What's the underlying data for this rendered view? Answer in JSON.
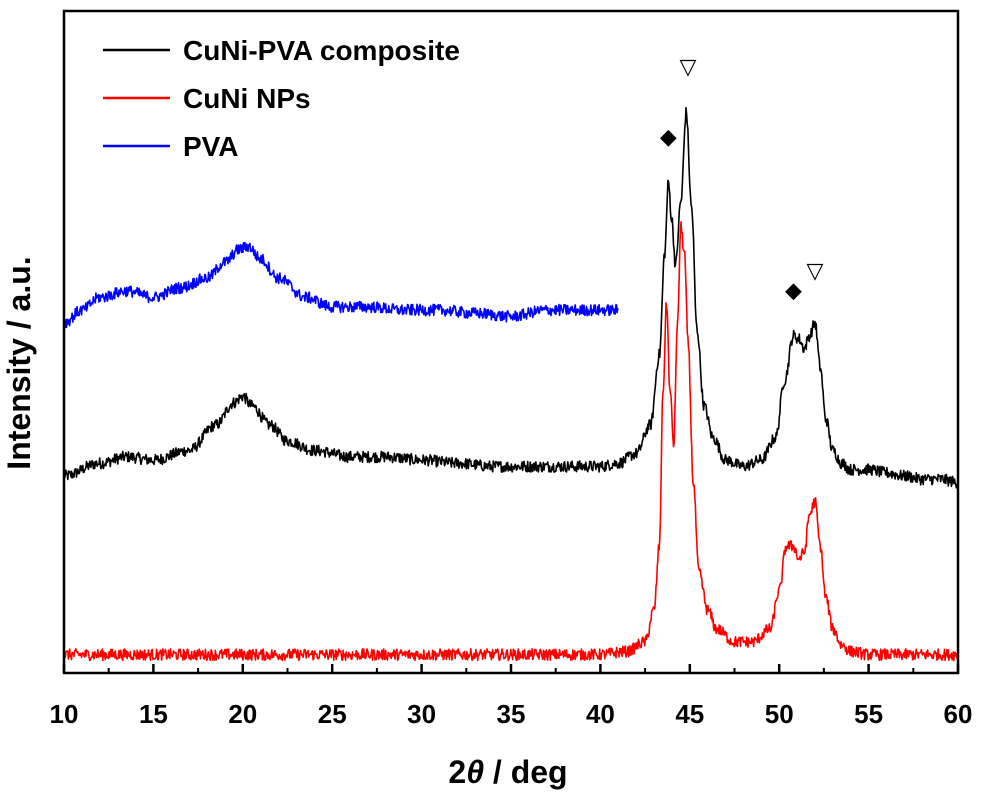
{
  "chart_data": {
    "type": "line",
    "title": "",
    "xlabel": {
      "prefix": "2",
      "symbol": "θ",
      "suffix": " / deg"
    },
    "ylabel": "Intensity / a.u.",
    "xlim": [
      10,
      60
    ],
    "ylim": [
      0,
      100
    ],
    "xticks": [
      10,
      15,
      20,
      25,
      30,
      35,
      40,
      45,
      50,
      55,
      60
    ],
    "yticks_shown": false,
    "legend_position": "top-left",
    "series": [
      {
        "name": "CuNi-PVA composite",
        "color": "#000000",
        "x": [
          10,
          12,
          13.5,
          15,
          17,
          18.5,
          19.5,
          20,
          20.5,
          21.5,
          22.5,
          24,
          26,
          28,
          30,
          32,
          34,
          36,
          38,
          40,
          41,
          42,
          42.8,
          43.3,
          43.6,
          43.8,
          44.0,
          44.2,
          44.5,
          44.8,
          45.1,
          45.4,
          45.8,
          46.3,
          47,
          48,
          49,
          49.8,
          50.3,
          50.8,
          51.1,
          51.4,
          51.7,
          52.0,
          52.3,
          52.6,
          53,
          53.5,
          54,
          55,
          56,
          57,
          58,
          59,
          60
        ],
        "y": [
          29,
          31,
          32,
          31.5,
          33,
          37,
          40.5,
          41.5,
          40,
          37,
          34.5,
          33,
          32,
          32,
          31.5,
          31,
          30.5,
          30.5,
          30.5,
          30.5,
          31,
          32.5,
          37,
          48,
          64,
          75,
          69,
          62,
          72,
          86,
          71,
          52,
          40,
          35,
          31.5,
          30.5,
          31.5,
          35,
          44,
          51,
          50.5,
          49,
          51,
          53,
          46,
          38,
          33,
          31,
          30,
          30,
          29.5,
          29,
          28.5,
          28.5,
          28
        ]
      },
      {
        "name": "CuNi NPs",
        "color": "#ff0000",
        "x": [
          10,
          15,
          20,
          25,
          30,
          35,
          40,
          41.5,
          42.5,
          43.0,
          43.3,
          43.5,
          43.7,
          43.9,
          44.1,
          44.3,
          44.5,
          44.7,
          44.9,
          45.2,
          45.5,
          46,
          46.5,
          47.5,
          48.5,
          49.5,
          50.0,
          50.4,
          50.8,
          51.1,
          51.4,
          51.7,
          52.0,
          52.3,
          52.6,
          53.0,
          53.5,
          54,
          55,
          57,
          60
        ],
        "y": [
          1,
          1,
          1,
          1,
          1,
          1,
          1,
          1.5,
          3,
          8,
          18,
          42,
          56,
          42,
          34,
          52,
          68,
          64,
          50,
          28,
          14,
          8,
          5,
          3,
          3,
          5,
          11,
          18,
          18,
          16,
          17,
          23,
          25,
          18,
          10,
          5,
          2.5,
          1.5,
          1,
          1,
          1
        ]
      },
      {
        "name": "PVA",
        "color": "#0000ff",
        "x": [
          10,
          11,
          12,
          13.5,
          15,
          16.5,
          18,
          19,
          19.8,
          20.3,
          21,
          22,
          23.5,
          25,
          27,
          29,
          31,
          33,
          35,
          37,
          39,
          41
        ],
        "y": [
          53,
          55,
          57,
          58,
          57,
          58.5,
          60,
          62.5,
          64.5,
          65,
          63,
          60,
          57,
          55.5,
          55.5,
          55,
          55,
          54.5,
          54,
          55,
          55,
          55
        ]
      }
    ],
    "annotations": [
      {
        "symbol": "◆",
        "label": "diamond-marker",
        "x": 43.8,
        "y": 81
      },
      {
        "symbol": "▽",
        "label": "triangle-marker",
        "x": 44.9,
        "y": 92
      },
      {
        "symbol": "◆",
        "label": "diamond-marker",
        "x": 50.8,
        "y": 57
      },
      {
        "symbol": "▽",
        "label": "triangle-marker",
        "x": 52.0,
        "y": 60
      }
    ]
  }
}
